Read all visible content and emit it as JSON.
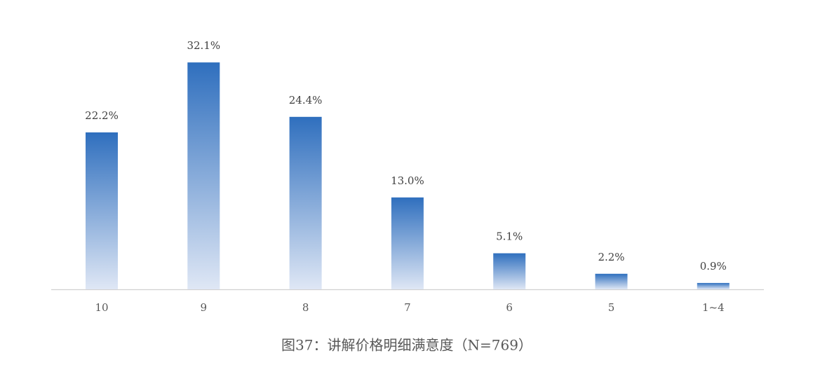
{
  "chart_data": {
    "type": "bar",
    "title": "图37：讲解价格明细满意度（N=769）",
    "categories": [
      "10",
      "9",
      "8",
      "7",
      "6",
      "5",
      "1~4"
    ],
    "values": [
      22.2,
      32.1,
      24.4,
      13.0,
      5.1,
      2.2,
      0.9
    ],
    "value_labels": [
      "22.2%",
      "32.1%",
      "24.4%",
      "13.0%",
      "5.1%",
      "2.2%",
      "0.9%"
    ],
    "color": "#2f6fbe"
  }
}
